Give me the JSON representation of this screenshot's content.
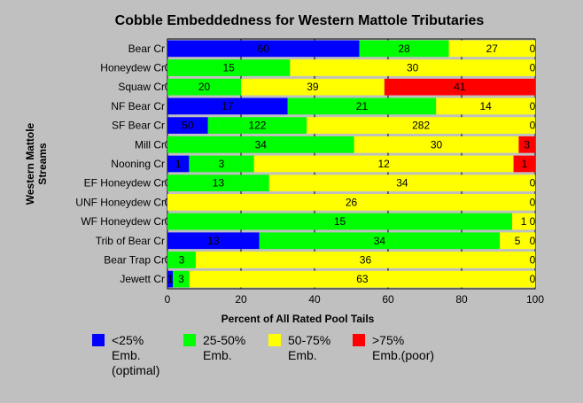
{
  "chart_data": {
    "type": "bar",
    "orientation": "horizontal",
    "stacked": "percent",
    "title": "Cobble Embeddedness for Western Mattole Tributaries",
    "xlabel": "Percent of All Rated Pool Tails",
    "ylabel_lines": [
      "Western Mattole",
      "Streams"
    ],
    "xlim": [
      0,
      100
    ],
    "xticks": [
      0,
      20,
      40,
      60,
      80,
      100
    ],
    "grid": true,
    "legend_position": "bottom",
    "categories": [
      "Bear Cr",
      "Honeydew Cr",
      "Squaw Cr",
      "NF Bear Cr",
      "SF Bear Cr",
      "Mill Cr",
      "Nooning Cr",
      "EF Honeydew Cr",
      "UNF Honeydew Cr",
      "WF Honeydew Cr",
      "Trib of Bear Cr",
      "Bear Trap Cr",
      "Jewett Cr"
    ],
    "series": [
      {
        "name": "<25%",
        "name_lines": [
          "<25%",
          "Emb.",
          "(optimal)"
        ],
        "color": "#0000ff",
        "values": [
          60,
          0,
          0,
          17,
          50,
          0,
          1,
          0,
          0,
          0,
          13,
          0,
          1
        ]
      },
      {
        "name": "25-50%",
        "name_lines": [
          "25-50%",
          "Emb."
        ],
        "color": "#00ff00",
        "values": [
          28,
          15,
          20,
          21,
          122,
          34,
          3,
          13,
          0,
          15,
          34,
          3,
          3
        ]
      },
      {
        "name": "50-75%",
        "name_lines": [
          "50-75%",
          "Emb."
        ],
        "color": "#ffff00",
        "values": [
          27,
          30,
          39,
          14,
          282,
          30,
          12,
          34,
          26,
          1,
          5,
          36,
          63
        ]
      },
      {
        "name": ">75%",
        "name_lines": [
          ">75%",
          "Emb.(poor)"
        ],
        "color": "#ff0000",
        "values": [
          0,
          0,
          41,
          0,
          0,
          3,
          1,
          0,
          0,
          0,
          0,
          0,
          0
        ]
      }
    ]
  }
}
